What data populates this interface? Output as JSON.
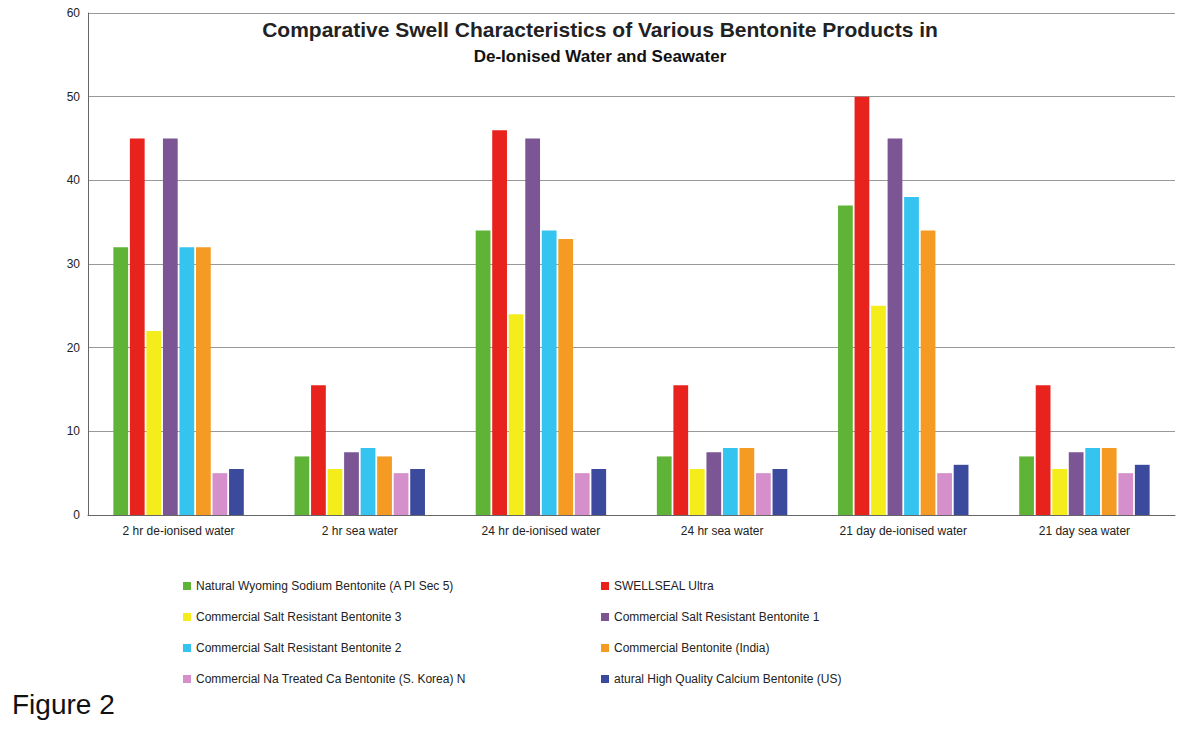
{
  "chart_data": {
    "type": "bar",
    "title": "Comparative Swell Characteristics of Various Bentonite Products in",
    "subtitle": "De-Ionised Water and Seawater",
    "caption": "Figure 2",
    "categories": [
      "2 hr de-ionised water",
      "2 hr sea water",
      "24 hr de-ionised water",
      "24 hr sea water",
      "21 day de-ionised water",
      "21 day sea water"
    ],
    "series": [
      {
        "name": "Natural Wyoming Sodium Bentonite (A PI Sec 5)",
        "color": "#5fb336",
        "values": [
          32,
          7,
          34,
          7,
          37,
          7
        ]
      },
      {
        "name": "SWELLSEAL Ultra",
        "color": "#e8221c",
        "values": [
          45,
          15.5,
          46,
          15.5,
          50,
          15.5
        ]
      },
      {
        "name": "Commercial Salt Resistant Bentonite 3",
        "color": "#f5ec1c",
        "values": [
          22,
          5.5,
          24,
          5.5,
          25,
          5.5
        ]
      },
      {
        "name": "Commercial Salt Resistant Bentonite 1",
        "color": "#7b5594",
        "values": [
          45,
          7.5,
          45,
          7.5,
          45,
          7.5
        ]
      },
      {
        "name": "Commercial Salt Resistant Bentonite 2",
        "color": "#35c3f0",
        "values": [
          32,
          8,
          34,
          8,
          38,
          8
        ]
      },
      {
        "name": "Commercial Bentonite (India)",
        "color": "#f59a22",
        "values": [
          32,
          7,
          33,
          8,
          34,
          8
        ]
      },
      {
        "name": "Commercial Na Treated Ca Bentonite (S. Korea) N",
        "color": "#d58fca",
        "values": [
          5,
          5,
          5,
          5,
          5,
          5
        ]
      },
      {
        "name": "atural High Quality Calcium Bentonite (US)",
        "color": "#3b4a9c",
        "values": [
          5.5,
          5.5,
          5.5,
          5.5,
          6,
          6
        ]
      }
    ],
    "ylim": [
      0,
      60
    ],
    "yticks": [
      0,
      10,
      20,
      30,
      40,
      50,
      60
    ],
    "grid": true,
    "legend": "bottom"
  }
}
